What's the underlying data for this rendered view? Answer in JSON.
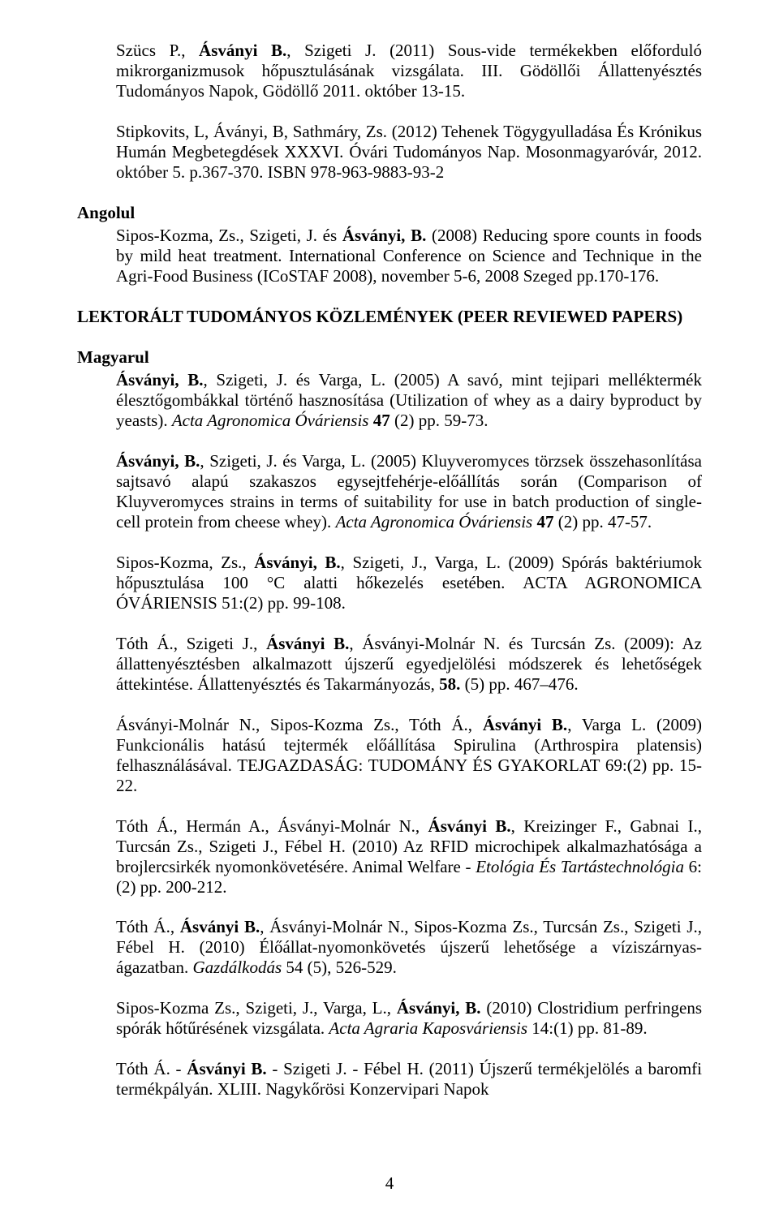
{
  "p1_a": "Szücs P., ",
  "p1_b": "Ásványi B.",
  "p1_c": ", Szigeti J. (2011) Sous-vide termékekben előforduló mikrorganizmusok hőpusztulásának vizsgálata. III. Gödöllői Állattenyésztés Tudományos Napok, Gödöllő 2011. október 13-15.",
  "p2": "Stipkovits, L, Áványi, B, Sathmáry, Zs. (2012) Tehenek Tögygyulladása És Krónikus Humán Megbetegdések XXXVI. Óvári Tudományos Nap. Mosonmagyaróvár, 2012. október 5. p.367-370. ISBN 978-963-9883-93-2",
  "angolul": "Angolul",
  "p3_a": "Sipos-Kozma, Zs., Szigeti, J. és ",
  "p3_b": "Ásványi, B.",
  "p3_c": " (2008) Reducing spore counts in foods by mild heat treatment. International Conference on Science and Technique in the Agri-Food Business (ICoSTAF 2008), november 5-6, 2008 Szeged pp.170-176.",
  "lektoralt": "LEKTORÁLT TUDOMÁNYOS KÖZLEMÉNYEK (PEER REVIEWED PAPERS)",
  "magyarul": "Magyarul",
  "p4_a": "Ásványi, B.",
  "p4_b": ", Szigeti, J. és Varga, L. (2005) A savó, mint tejipari melléktermék élesztőgombákkal történő hasznosítása (Utilization of whey as a dairy byproduct by yeasts). ",
  "p4_c": "Acta Agronomica Óváriensis",
  "p4_d": " ",
  "p4_e": "47",
  "p4_f": " (2) pp. 59-73.",
  "p5_a": "Ásványi, B.",
  "p5_b": ", Szigeti, J. és Varga, L. (2005) Kluyveromyces törzsek összehasonlítása sajtsavó alapú szakaszos egysejtfehérje-előállítás során (Comparison of Kluyveromyces strains in terms of suitability for use in batch production of single-cell protein from cheese whey). ",
  "p5_c": "Acta Agronomica Óváriensis",
  "p5_d": " ",
  "p5_e": "47",
  "p5_f": " (2) pp. 47-57.",
  "p6_a": "Sipos-Kozma, Zs., ",
  "p6_b": "Ásványi, B.",
  "p6_c": ", Szigeti, J., Varga, L. (2009) Spórás baktériumok hőpusztulása 100 °C alatti hőkezelés esetében. ACTA AGRONOMICA ÓVÁRIENSIS 51:(2) pp. 99-108.",
  "p7_a": "Tóth Á., Szigeti J., ",
  "p7_b": "Ásványi B.",
  "p7_c": ", Ásványi-Molnár N. és Turcsán Zs. (2009): Az állattenyésztésben alkalmazott újszerű egyedjelölési módszerek és lehetőségek áttekintése. Állattenyésztés és Takarmányozás, ",
  "p7_d": "58.",
  "p7_e": " (5) pp. 467–476.",
  "p8_a": "Ásványi-Molnár N., Sipos-Kozma Zs., Tóth Á., ",
  "p8_b": "Ásványi B.",
  "p8_c": ", Varga L. (2009) Funkcionális hatású tejtermék előállítása Spirulina (Arthrospira platensis) felhasználásával. TEJGAZDASÁG: TUDOMÁNY ÉS GYAKORLAT 69:(2) pp. 15-22.",
  "p9_a": "Tóth Á., Hermán A., Ásványi-Molnár N., ",
  "p9_b": "Ásványi B.",
  "p9_c": ", Kreizinger F., Gabnai I., Turcsán Zs., Szigeti J., Fébel H. (2010) Az RFID microchipek alkalmazhatósága a brojlercsirkék nyomonkövetésére. Animal Welfare - ",
  "p9_d": "Etológia És Tartástechnológia",
  "p9_e": " 6:(2) pp. 200-212.",
  "p10_a": "Tóth Á., ",
  "p10_b": "Ásványi B.",
  "p10_c": ", Ásványi-Molnár N., Sipos-Kozma Zs., Turcsán Zs., Szigeti J., Fébel H. (2010) Élőállat-nyomonkövetés újszerű lehetősége a víziszárnyas-ágazatban. ",
  "p10_d": "Gazdálkodás",
  "p10_e": " 54 (5), 526-529.",
  "p11_a": "Sipos-Kozma Zs., Szigeti, J., Varga, L., ",
  "p11_b": "Ásványi, B.",
  "p11_c": " (2010) Clostridium perfringens spórák hőtűrésének vizsgálata. ",
  "p11_d": "Acta Agraria Kaposváriensis",
  "p11_e": " 14:(1) pp. 81-89.",
  "p12_a": "Tóth Á. - ",
  "p12_b": "Ásványi B.",
  "p12_c": " - Szigeti J. - Fébel H. (2011) Újszerű termékjelölés a baromfi termékpályán. XLIII. Nagykőrösi Konzervipari Napok",
  "page_number": "4"
}
